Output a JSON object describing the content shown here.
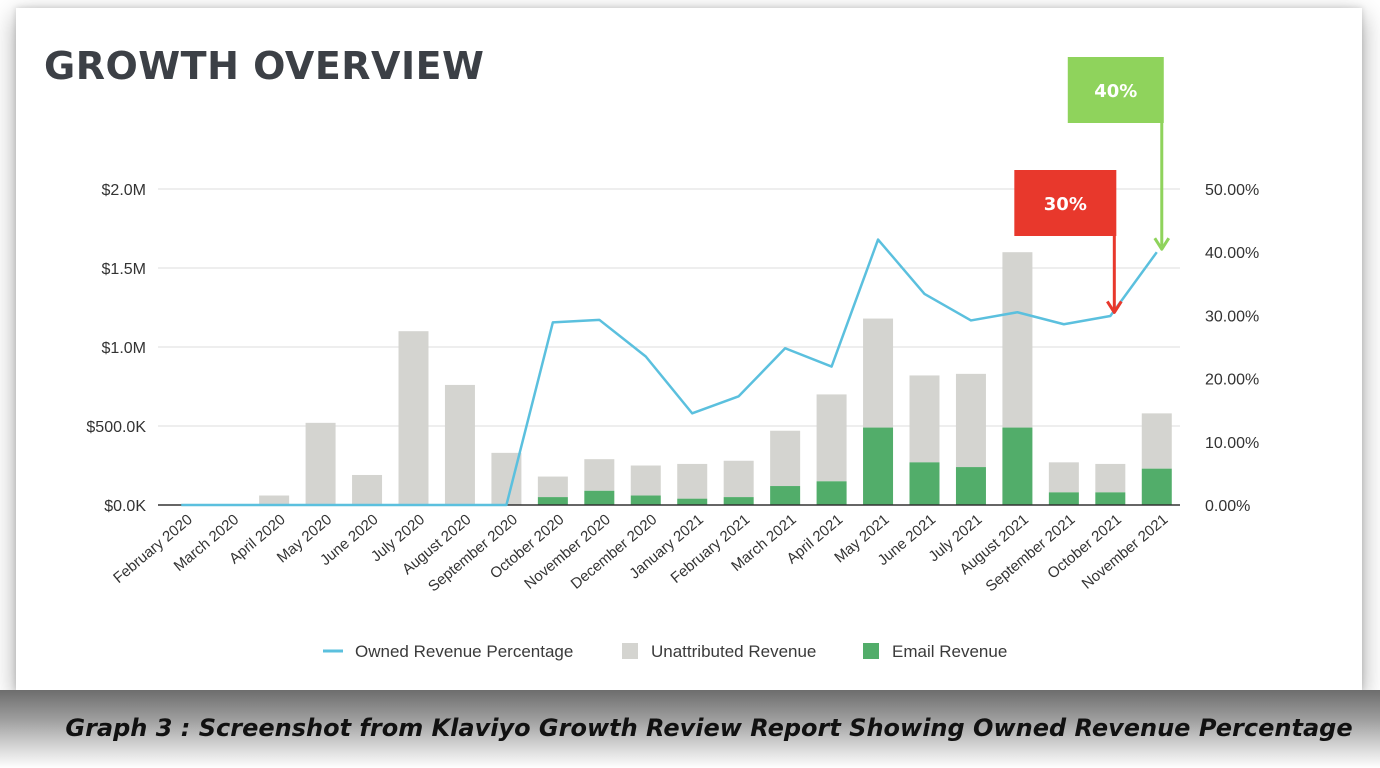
{
  "title": "GROWTH OVERVIEW",
  "caption": "Graph 3 : Screenshot from Klaviyo Growth Review Report Showing Owned Revenue Percentage",
  "colors": {
    "line": "#5bc0de",
    "unattributed": "#d4d4d0",
    "email": "#52ad6a",
    "callout_red": "#e8382c",
    "callout_green": "#8fd35c"
  },
  "callouts": [
    {
      "label": "30%",
      "month": "October 2021",
      "value": 30,
      "color": "#e8382c"
    },
    {
      "label": "40%",
      "month": "November 2021",
      "value": 40,
      "color": "#8fd35c"
    }
  ],
  "chart_data": {
    "type": "bar",
    "title": "GROWTH OVERVIEW",
    "categories": [
      "February 2020",
      "March 2020",
      "April 2020",
      "May 2020",
      "June 2020",
      "July 2020",
      "August 2020",
      "September 2020",
      "October 2020",
      "November 2020",
      "December 2020",
      "January 2021",
      "February 2021",
      "March 2021",
      "April 2021",
      "May 2021",
      "June 2021",
      "July 2021",
      "August 2021",
      "September 2021",
      "October 2021",
      "November 2021"
    ],
    "stacked": true,
    "series": [
      {
        "name": "Email Revenue",
        "axis": "left",
        "values": [
          0,
          0,
          0,
          0,
          0,
          0,
          0,
          0,
          50,
          90,
          60,
          40,
          50,
          120,
          150,
          490,
          270,
          240,
          490,
          80,
          80,
          230
        ]
      },
      {
        "name": "Unattributed Revenue",
        "axis": "left",
        "values": [
          0,
          0,
          60,
          520,
          190,
          1100,
          760,
          330,
          130,
          200,
          190,
          220,
          230,
          350,
          550,
          690,
          550,
          590,
          1110,
          190,
          180,
          350
        ]
      },
      {
        "name": "Owned Revenue Percentage",
        "type": "line",
        "axis": "right",
        "values": [
          0,
          0,
          0,
          0,
          0,
          0,
          0,
          0,
          28.9,
          29.3,
          23.5,
          14.5,
          17.2,
          24.8,
          21.9,
          42.0,
          33.4,
          29.2,
          30.5,
          28.6,
          29.9,
          40.0
        ]
      }
    ],
    "y_left": {
      "ylim": [
        0,
        2000
      ],
      "unit": "K",
      "ticks": [
        "$0.0K",
        "$500.0K",
        "$1.0M",
        "$1.5M",
        "$2.0M"
      ],
      "tick_values": [
        0,
        500,
        1000,
        1500,
        2000
      ]
    },
    "y_right": {
      "ylim": [
        0,
        50
      ],
      "unit": "%",
      "ticks": [
        "0.00%",
        "10.00%",
        "20.00%",
        "30.00%",
        "40.00%",
        "50.00%"
      ],
      "tick_values": [
        0,
        10,
        20,
        30,
        40,
        50
      ]
    },
    "grid": true,
    "legend": {
      "position": "bottom",
      "items": [
        "Owned Revenue Percentage",
        "Unattributed Revenue",
        "Email Revenue"
      ]
    }
  }
}
